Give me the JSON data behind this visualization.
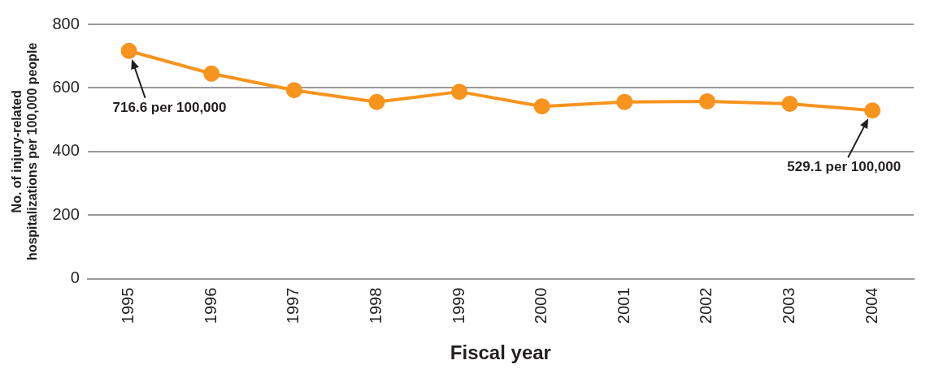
{
  "chart_data": {
    "type": "line",
    "xlabel": "Fiscal year",
    "ylabel": "No. of injury-related\nhospitalizations per 100,000 people",
    "categories": [
      "1995",
      "1996",
      "1997",
      "1998",
      "1999",
      "2000",
      "2001",
      "2002",
      "2003",
      "2004"
    ],
    "series": [
      {
        "color": "#f7941d",
        "values": [
          716.6,
          645,
          593,
          556,
          588,
          542,
          556,
          558,
          550,
          529.1
        ]
      }
    ],
    "ylim": [
      0,
      800
    ],
    "yticks": [
      0,
      200,
      400,
      600,
      800
    ],
    "grid": "y",
    "marker": "circle",
    "line_style": "solid",
    "legend": false,
    "annotations": [
      "716.6 per 100,000",
      "529.1 per 100,000"
    ]
  }
}
